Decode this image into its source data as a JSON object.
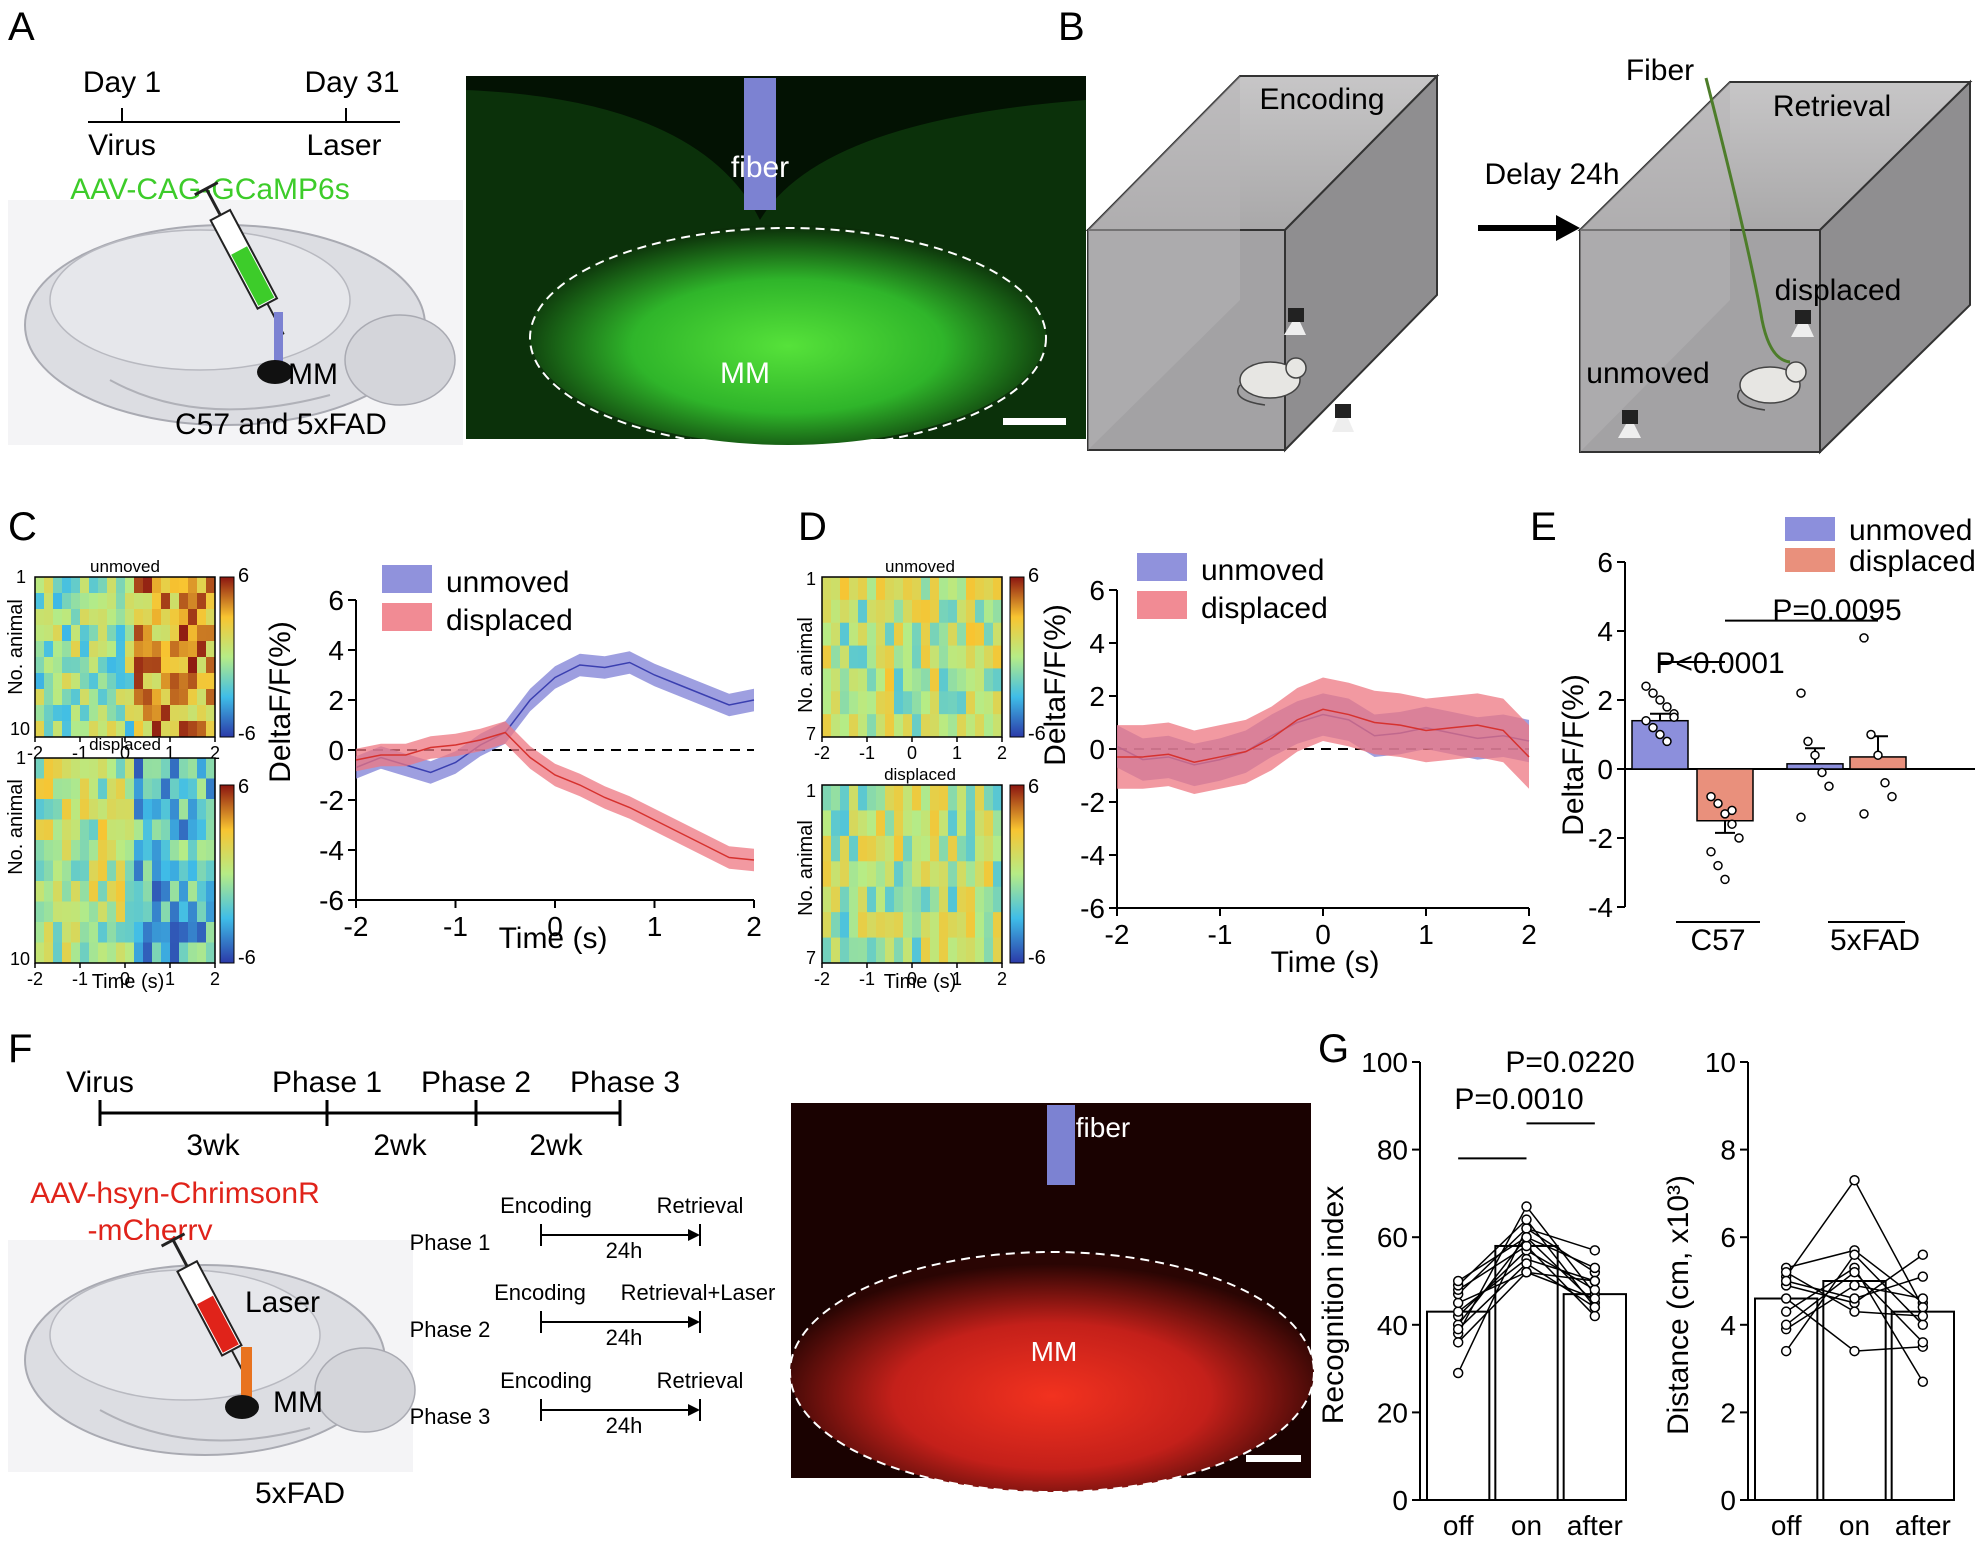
{
  "panels": {
    "A": "A",
    "B": "B",
    "C": "C",
    "D": "D",
    "E": "E",
    "F": "F",
    "G": "G"
  },
  "colors": {
    "unmoved": "#7d7fd6",
    "displaced": "#ee7781",
    "bar_unmoved": "#8c8fdc",
    "bar_displaced": "#e9907c",
    "green": "#3dcc2a",
    "red": "#e0231a",
    "fiber": "#7c82d2",
    "laser": "#e8731f"
  },
  "panelA": {
    "day1": "Day 1",
    "day31": "Day 31",
    "virus": "Virus",
    "laser": "Laser",
    "aav": "AAV-CAG-GCaMP6s",
    "mm": "MM",
    "mouse_lines": "C57 and 5xFAD",
    "fiber_label": "fiber",
    "region_label": "MM"
  },
  "panelB": {
    "encoding": "Encoding",
    "retrieval": "Retrieval",
    "delay": "Delay 24h",
    "fiber": "Fiber",
    "displaced": "displaced",
    "unmoved": "unmoved"
  },
  "heatmaps": {
    "unmoved": "unmoved",
    "displaced": "displaced",
    "ylabel": "No. animal",
    "xlabel": "Time (s)",
    "cbar_max": "6",
    "cbar_min": "-6",
    "c_ticks_x": [
      "-2",
      "-1",
      "0",
      "1",
      "2"
    ],
    "c_ticks_y_top": "1",
    "c_ticks_y_bottom": "10",
    "d_ticks_y_top": "1",
    "d_ticks_y_bottom": "7"
  },
  "chart_data": [
    {
      "id": "C-line",
      "type": "line",
      "title": "",
      "xlabel": "Time (s)",
      "ylabel": "DeltaF/F(%)",
      "xlim": [
        -2,
        2
      ],
      "ylim": [
        -6,
        6
      ],
      "xticks": [
        "-2",
        "-1",
        "0",
        "1",
        "2"
      ],
      "yticks": [
        "-6",
        "-4",
        "-2",
        "0",
        "2",
        "4",
        "6"
      ],
      "x": [
        -2,
        -1.75,
        -1.5,
        -1.25,
        -1,
        -0.75,
        -0.5,
        -0.25,
        0,
        0.25,
        0.5,
        0.75,
        1,
        1.25,
        1.5,
        1.75,
        2
      ],
      "series": [
        {
          "name": "unmoved",
          "values": [
            -0.7,
            -0.3,
            -0.6,
            -0.9,
            -0.5,
            0.2,
            0.7,
            2.0,
            2.9,
            3.4,
            3.3,
            3.5,
            3.0,
            2.6,
            2.2,
            1.8,
            2.0
          ],
          "sem": 0.45
        },
        {
          "name": "displaced",
          "values": [
            -0.4,
            -0.2,
            -0.2,
            0.1,
            0.2,
            0.4,
            0.7,
            -0.3,
            -1.0,
            -1.4,
            -1.9,
            -2.3,
            -2.8,
            -3.3,
            -3.8,
            -4.3,
            -4.4
          ],
          "sem": 0.45
        }
      ]
    },
    {
      "id": "D-line",
      "type": "line",
      "title": "",
      "xlabel": "Time (s)",
      "ylabel": "DeltaF/F(%)",
      "xlim": [
        -2,
        2
      ],
      "ylim": [
        -6,
        6
      ],
      "xticks": [
        "-2",
        "-1",
        "0",
        "1",
        "2"
      ],
      "yticks": [
        "-6",
        "-4",
        "-2",
        "0",
        "2",
        "4",
        "6"
      ],
      "x": [
        -2,
        -1.75,
        -1.5,
        -1.25,
        -1,
        -0.75,
        -0.5,
        -0.25,
        0,
        0.25,
        0.5,
        0.75,
        1,
        1.25,
        1.5,
        1.75,
        2
      ],
      "series": [
        {
          "name": "unmoved",
          "values": [
            0.1,
            -0.4,
            -0.3,
            -0.6,
            -0.4,
            -0.1,
            0.5,
            1.0,
            1.3,
            1.1,
            0.5,
            0.6,
            0.8,
            0.6,
            0.4,
            0.5,
            0.3
          ],
          "sem": 0.8
        },
        {
          "name": "displaced",
          "values": [
            -0.3,
            -0.3,
            -0.2,
            -0.5,
            -0.3,
            -0.1,
            0.4,
            1.1,
            1.5,
            1.3,
            1.0,
            0.9,
            0.7,
            0.8,
            0.9,
            0.7,
            -0.3
          ],
          "sem": 1.2
        }
      ]
    },
    {
      "id": "E-bar",
      "type": "bar",
      "title": "",
      "ylabel": "DeltaF/F(%)",
      "ylim": [
        -4,
        6
      ],
      "yticks": [
        "-4",
        "-2",
        "0",
        "2",
        "4",
        "6"
      ],
      "groups": [
        "C57",
        "5xFAD"
      ],
      "legend": [
        "unmoved",
        "displaced"
      ],
      "bars": [
        {
          "group": "C57",
          "series": "unmoved",
          "value": 1.4,
          "sem": 0.2,
          "points": [
            2.4,
            2.2,
            2.0,
            1.8,
            1.6,
            1.4,
            1.2,
            1.0,
            0.8,
            1.5
          ]
        },
        {
          "group": "C57",
          "series": "displaced",
          "value": -1.5,
          "sem": 0.35,
          "points": [
            -0.8,
            -1.0,
            -1.3,
            -1.6,
            -2.0,
            -2.4,
            -2.8,
            -3.2,
            -1.2
          ]
        },
        {
          "group": "5xFAD",
          "series": "unmoved",
          "value": 0.15,
          "sem": 0.45,
          "points": [
            2.2,
            0.8,
            0.4,
            -0.1,
            -0.5,
            -1.4
          ]
        },
        {
          "group": "5xFAD",
          "series": "displaced",
          "value": 0.35,
          "sem": 0.6,
          "points": [
            3.8,
            1.0,
            0.4,
            -0.4,
            -0.8,
            -1.3
          ]
        }
      ],
      "annotations": [
        "P<0.0001",
        "P=0.0095"
      ]
    },
    {
      "id": "G-ri",
      "type": "bar",
      "title": "",
      "ylabel": "Recognition index",
      "ylim": [
        0,
        100
      ],
      "yticks": [
        "0",
        "20",
        "40",
        "60",
        "80",
        "100"
      ],
      "categories": [
        "off",
        "on",
        "after"
      ],
      "values": [
        43,
        58,
        47
      ],
      "paired": [
        [
          29,
          62,
          52
        ],
        [
          38,
          67,
          47
        ],
        [
          40,
          60,
          45
        ],
        [
          42,
          57,
          48
        ],
        [
          43,
          55,
          50
        ],
        [
          45,
          52,
          46
        ],
        [
          47,
          62,
          57
        ],
        [
          48,
          58,
          42
        ],
        [
          49,
          64,
          44
        ],
        [
          39,
          54,
          44
        ],
        [
          36,
          52,
          50
        ],
        [
          50,
          60,
          53
        ]
      ],
      "annotations": [
        "P=0.0010",
        "P=0.0220"
      ]
    },
    {
      "id": "G-dist",
      "type": "bar",
      "title": "",
      "ylabel": "Distance (cm, x10³)",
      "ylim": [
        0,
        10
      ],
      "yticks": [
        "0",
        "2",
        "4",
        "6",
        "8",
        "10"
      ],
      "categories": [
        "off",
        "on",
        "after"
      ],
      "values": [
        4.6,
        5.0,
        4.3
      ],
      "paired": [
        [
          5.3,
          5.7,
          4.5
        ],
        [
          5.1,
          7.3,
          4.4
        ],
        [
          4.9,
          4.5,
          5.6
        ],
        [
          4.6,
          3.4,
          3.5
        ],
        [
          4.3,
          5.3,
          2.7
        ],
        [
          3.9,
          4.9,
          4.6
        ],
        [
          3.4,
          5.6,
          4.0
        ],
        [
          5.2,
          4.3,
          4.2
        ],
        [
          4.0,
          5.2,
          3.6
        ],
        [
          5.0,
          4.6,
          5.1
        ]
      ]
    }
  ],
  "panelF": {
    "virus": "Virus",
    "phase1": "Phase 1",
    "phase2": "Phase 2",
    "phase3": "Phase 3",
    "w1": "3wk",
    "w2": "2wk",
    "w3": "2wk",
    "aav1": "AAV-hsyn-ChrimsonR",
    "aav2": "-mCherry",
    "laser": "Laser",
    "mm": "MM",
    "line": "5xFAD",
    "p1": "Phase 1",
    "p2": "Phase 2",
    "p3": "Phase 3",
    "encoding": "Encoding",
    "retrieval": "Retrieval",
    "retrieval_laser": "Retrieval+Laser",
    "h24": "24h",
    "fiber_label": "fiber",
    "region_label": "MM"
  }
}
